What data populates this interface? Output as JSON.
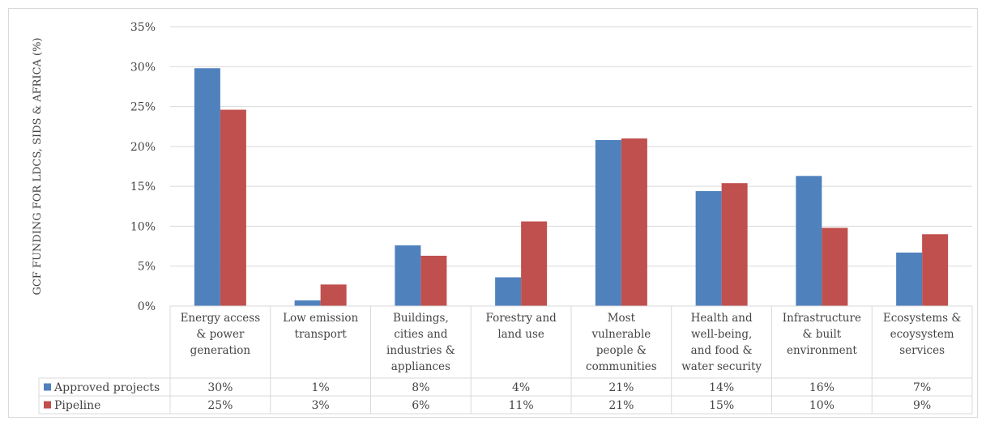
{
  "chart_data": {
    "type": "bar",
    "title": "",
    "xlabel": "",
    "ylabel": "GCF FUNDING FOR LDCS, SIDS & AFRICA (%)",
    "ylim": [
      0,
      35
    ],
    "y_ticks": [
      "0%",
      "5%",
      "10%",
      "15%",
      "20%",
      "25%",
      "30%",
      "35%"
    ],
    "grid": true,
    "legend": "data-table-left",
    "categories": [
      [
        "Energy access",
        "& power",
        "generation"
      ],
      [
        "Low emission",
        "transport"
      ],
      [
        "Buildings,",
        "cities and",
        "industries &",
        "appliances"
      ],
      [
        "Forestry and",
        "land use"
      ],
      [
        "Most",
        "vulnerable",
        "people &",
        "communities"
      ],
      [
        "Health and",
        "well-being,",
        "and food &",
        "water security"
      ],
      [
        "Infrastructure",
        "& built",
        "environment"
      ],
      [
        "Ecosystems &",
        "ecoysystem",
        "services"
      ]
    ],
    "series": [
      {
        "name": "Approved projects",
        "color": "#4f81bd",
        "values": [
          29.8,
          0.7,
          7.6,
          3.6,
          20.8,
          14.4,
          16.3,
          6.7
        ],
        "labels": [
          "30%",
          "1%",
          "8%",
          "4%",
          "21%",
          "14%",
          "16%",
          "7%"
        ]
      },
      {
        "name": "Pipeline",
        "color": "#c0504d",
        "values": [
          24.6,
          2.7,
          6.3,
          10.6,
          21.0,
          15.4,
          9.8,
          9.0
        ],
        "labels": [
          "25%",
          "3%",
          "6%",
          "11%",
          "21%",
          "15%",
          "10%",
          "9%"
        ]
      }
    ]
  }
}
